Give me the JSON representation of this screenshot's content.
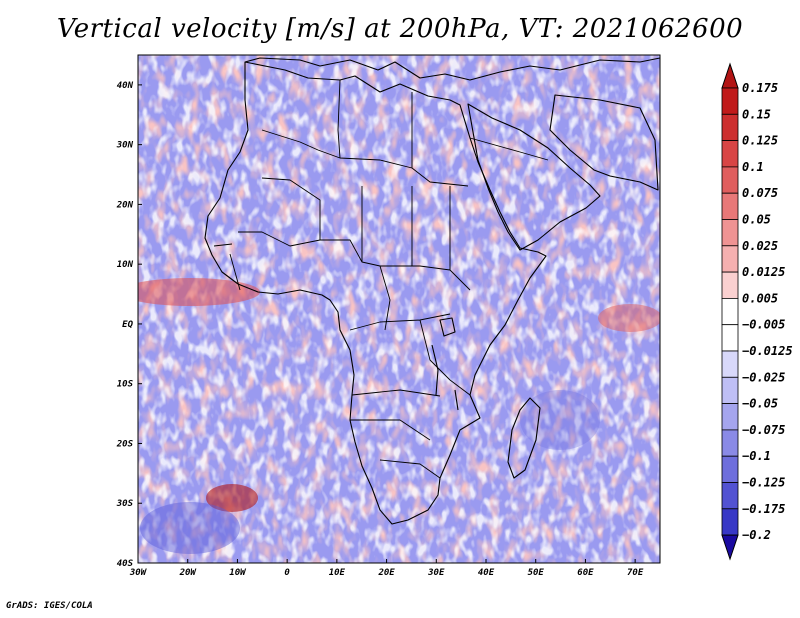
{
  "title": "Vertical velocity [m/s] at 200hPa, VT: 2021062600",
  "credit": "GrADS: IGES/COLA",
  "lat_labels": [
    "40N",
    "30N",
    "20N",
    "10N",
    "EQ",
    "10S",
    "20S",
    "30S",
    "40S"
  ],
  "lon_labels": [
    "30W",
    "20W",
    "10W",
    "0",
    "10E",
    "20E",
    "30E",
    "40E",
    "50E",
    "60E",
    "70E"
  ],
  "map": {
    "lon_range": [
      -30,
      75
    ],
    "lat_range": [
      -40,
      45
    ],
    "field": "vertical velocity",
    "units": "m/s",
    "level": "200hPa"
  },
  "colorbar": {
    "levels": [
      "0.175",
      "0.15",
      "0.125",
      "0.1",
      "0.075",
      "0.05",
      "0.025",
      "0.0125",
      "0.005",
      "−0.005",
      "−0.0125",
      "−0.025",
      "−0.05",
      "−0.075",
      "−0.1",
      "−0.125",
      "−0.175",
      "−0.2"
    ],
    "colors": [
      "#c01a1a",
      "#cc2e2e",
      "#d84545",
      "#e05e5e",
      "#e87878",
      "#ef9393",
      "#f5b0b0",
      "#fad0d0",
      "#ffffff",
      "#ffffff",
      "#d8d8fa",
      "#bfbff5",
      "#a5a5ee",
      "#8a8ae6",
      "#6e6edc",
      "#5252d2",
      "#3838c6",
      "#1e1eb0"
    ],
    "top_arrow_color": "#b21414",
    "bottom_arrow_color": "#1a0aa0"
  }
}
